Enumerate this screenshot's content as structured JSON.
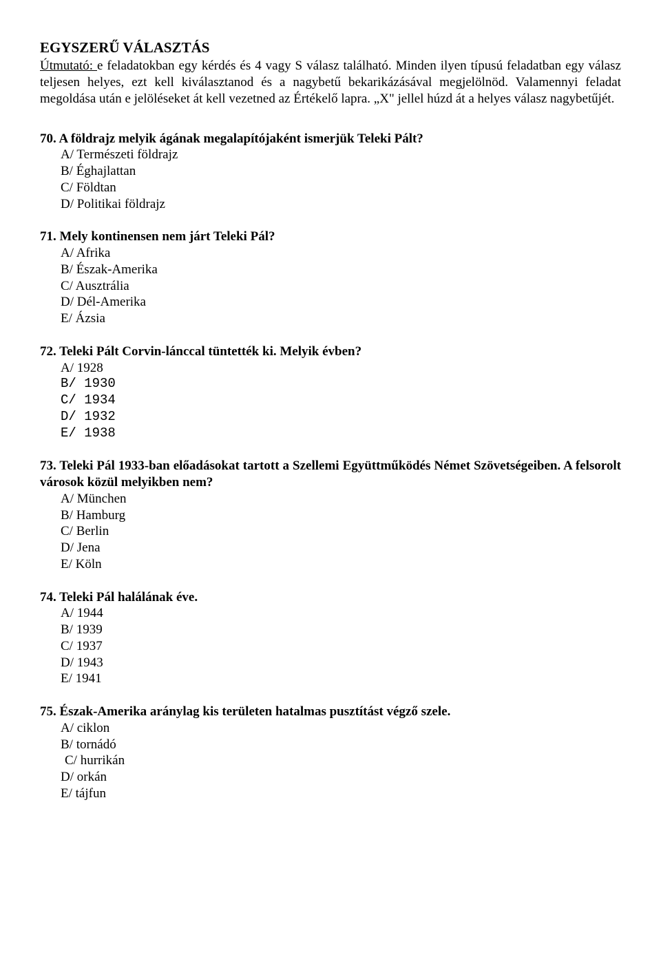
{
  "title": "EGYSZERŰ VÁLASZTÁS",
  "instructions_lead": "Útmutató: ",
  "instructions_body": "e feladatokban egy kérdés és 4 vagy S válasz található. Minden ilyen típusú feladatban egy válasz teljesen helyes, ezt kell kiválasztanod és a nagybetű bekarikázásával megjelölnöd. Valamennyi feladat megoldása után e jelöléseket át kell vezetned az Értékelő lapra. „X\" jellel húzd át a helyes válasz nagybetűjét.",
  "questions": [
    {
      "num": "70.",
      "text": "A földrajz melyik ágának megalapítójaként ismerjük Teleki Pált?",
      "opts": [
        "A/ Természeti földrajz",
        "B/ Éghajlattan",
        "C/ Földtan",
        "D/ Politikai földrajz"
      ]
    },
    {
      "num": "71.",
      "text": "Mely kontinensen nem járt Teleki Pál?",
      "opts": [
        "A/  Afrika",
        "B/  Észak-Amerika",
        "C/  Ausztrália",
        "D/  Dél-Amerika",
        "E/  Ázsia"
      ]
    },
    {
      "num": "72.",
      "text": "Teleki Pált Corvin-lánccal tüntették ki. Melyik évben?",
      "first_opt": "A/  1928",
      "mono_opts": [
        "B/ 1930",
        "C/ 1934",
        "D/ 1932",
        "E/ 1938"
      ]
    },
    {
      "num": "73.",
      "text_a": "Teleki Pál 1933-ban előadásokat tartott a Szellemi Együttműködés Német Szövetségeiben. A felsorolt városok közül melyikben nem?",
      "opts": [
        "A/ München",
        "B/ Hamburg",
        "C/ Berlin",
        "D/ Jena",
        "E/ Köln"
      ]
    },
    {
      "num": "74.",
      "text": "Teleki Pál halálának éve.",
      "opts": [
        "A/   1944",
        "B/   1939",
        "C/   1937",
        "D/   1943",
        "E/   1941"
      ]
    },
    {
      "num": "75.",
      "text": "Észak-Amerika aránylag kis területen hatalmas pusztítást végző szele.",
      "opts": [
        "A/ ciklon",
        "B/ tornádó",
        "D/ orkán",
        "E/ tájfun"
      ],
      "opt_c": " C/ hurrikán"
    }
  ]
}
